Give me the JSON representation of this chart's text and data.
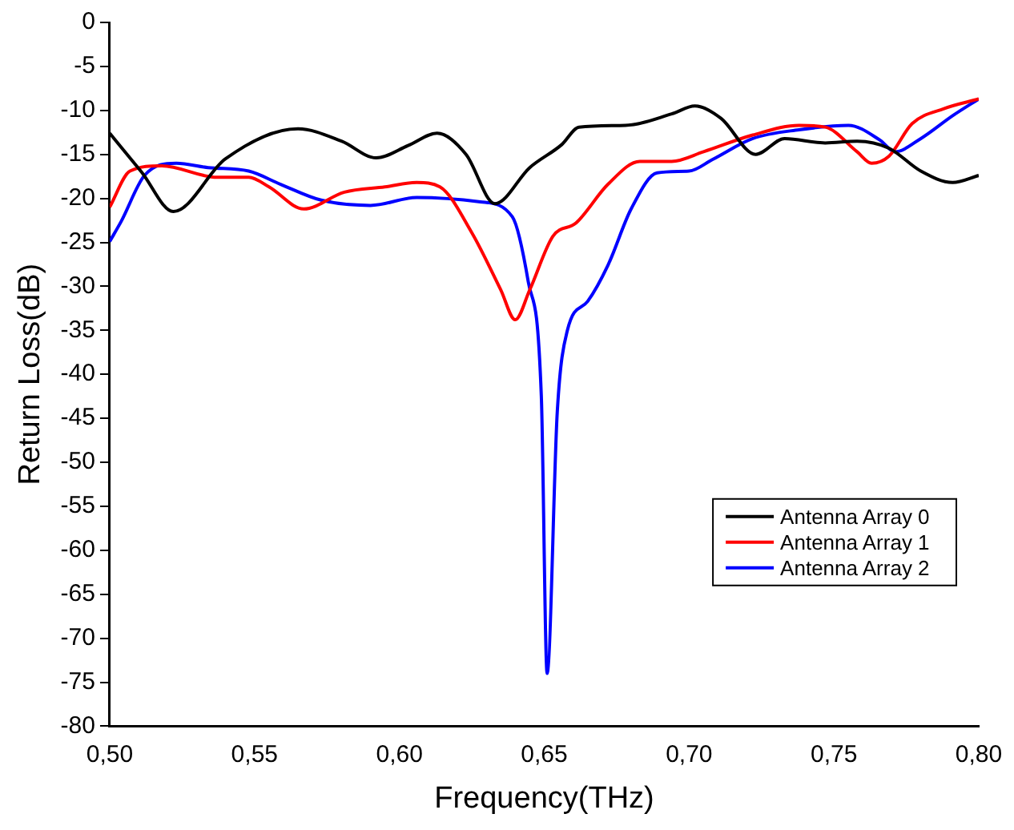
{
  "chart_data": {
    "type": "line",
    "xlabel": "Frequency(THz)",
    "ylabel": "Return Loss(dB)",
    "xlim": [
      0.5,
      0.8
    ],
    "xticks": [
      {
        "value": 0.5,
        "label": "0,50"
      },
      {
        "value": 0.55,
        "label": "0,55"
      },
      {
        "value": 0.6,
        "label": "0,60"
      },
      {
        "value": 0.65,
        "label": "0,65"
      },
      {
        "value": 0.7,
        "label": "0,70"
      },
      {
        "value": 0.75,
        "label": "0,75"
      },
      {
        "value": 0.8,
        "label": "0,80"
      }
    ],
    "ylim": [
      -80,
      0
    ],
    "yticks": [
      -80,
      -75,
      -70,
      -65,
      -60,
      -55,
      -50,
      -45,
      -40,
      -35,
      -30,
      -25,
      -20,
      -15,
      -10,
      -5,
      0
    ],
    "grid": false,
    "legend": "bottom right",
    "marker": "none",
    "line_style": "solid",
    "series": [
      {
        "name": "Antenna Array 0",
        "color": "#000000",
        "x": [
          0.5,
          0.511,
          0.522,
          0.54,
          0.565,
          0.58,
          0.592,
          0.603,
          0.613,
          0.623,
          0.633,
          0.645,
          0.656,
          0.662,
          0.678,
          0.694,
          0.702,
          0.711,
          0.723,
          0.733,
          0.747,
          0.758,
          0.769,
          0.78,
          0.791,
          0.8
        ],
        "values": [
          -12.6,
          -17,
          -21.5,
          -15.5,
          -12.1,
          -13.5,
          -15.4,
          -14,
          -12.6,
          -15,
          -20.6,
          -16.5,
          -13.9,
          -11.9,
          -11.7,
          -10.4,
          -9.5,
          -10.9,
          -15,
          -13.2,
          -13.7,
          -13.5,
          -14.3,
          -16.9,
          -18.2,
          -17.4
        ]
      },
      {
        "name": "Antenna Array 1",
        "color": "#ff0000",
        "x": [
          0.5,
          0.507,
          0.518,
          0.537,
          0.548,
          0.555,
          0.567,
          0.581,
          0.595,
          0.606,
          0.614,
          0.625,
          0.635,
          0.64,
          0.645,
          0.653,
          0.661,
          0.672,
          0.683,
          0.694,
          0.705,
          0.722,
          0.738,
          0.747,
          0.758,
          0.763,
          0.769,
          0.777,
          0.788,
          0.8
        ],
        "values": [
          -21,
          -16.9,
          -16.3,
          -17.6,
          -17.6,
          -18.7,
          -21.2,
          -19.3,
          -18.7,
          -18.2,
          -18.7,
          -23.9,
          -30.4,
          -33.8,
          -30.4,
          -24.3,
          -22.8,
          -18.4,
          -15.8,
          -15.8,
          -14.7,
          -12.8,
          -11.7,
          -11.9,
          -14.7,
          -16,
          -15.2,
          -11.5,
          -9.8,
          -8.7
        ]
      },
      {
        "name": "Antenna Array 2",
        "color": "#0000ff",
        "x": [
          0.5,
          0.504,
          0.512,
          0.523,
          0.534,
          0.548,
          0.559,
          0.573,
          0.59,
          0.606,
          0.628,
          0.639,
          0.6445,
          0.649,
          0.651,
          0.6545,
          0.658,
          0.665,
          0.672,
          0.68,
          0.689,
          0.7,
          0.708,
          0.722,
          0.738,
          0.755,
          0.766,
          0.771,
          0.78,
          0.791,
          0.8
        ],
        "values": [
          -24.9,
          -22.6,
          -17.4,
          -16,
          -16.5,
          -16.9,
          -18.4,
          -20.2,
          -20.8,
          -19.9,
          -20.4,
          -22.1,
          -29.5,
          -42.5,
          -74,
          -44.3,
          -35,
          -31.7,
          -27.6,
          -21.2,
          -17.1,
          -16.9,
          -15.6,
          -13.2,
          -12.2,
          -11.7,
          -13.4,
          -14.7,
          -13.2,
          -10.6,
          -8.7
        ]
      }
    ]
  }
}
